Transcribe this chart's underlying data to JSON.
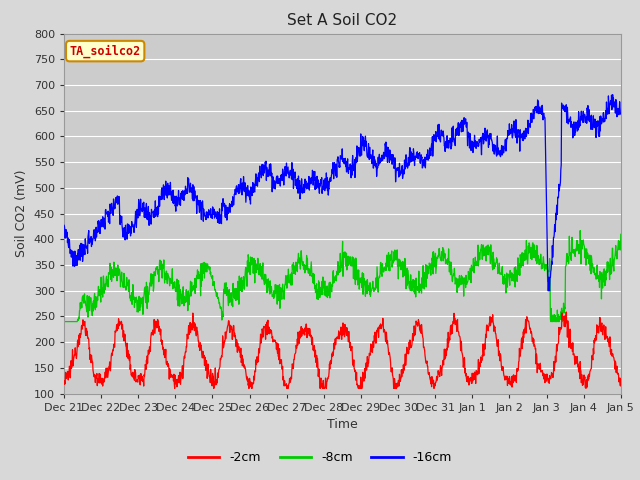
{
  "title": "Set A Soil CO2",
  "ylabel": "Soil CO2 (mV)",
  "xlabel": "Time",
  "legend_label": "TA_soilco2",
  "ylim": [
    100,
    800
  ],
  "series_labels": [
    "-2cm",
    "-8cm",
    "-16cm"
  ],
  "series_colors": [
    "#ff0000",
    "#00cc00",
    "#0000ff"
  ],
  "fig_bg_color": "#d8d8d8",
  "plot_bg_color": "#cccccc",
  "grid_color": "#bbbbbb",
  "tick_labels": [
    "Dec 21",
    "Dec 22",
    "Dec 23",
    "Dec 24",
    "Dec 25",
    "Dec 26",
    "Dec 27",
    "Dec 28",
    "Dec 29",
    "Dec 30",
    "Dec 31",
    "Jan 1",
    "Jan 2",
    "Jan 3",
    "Jan 4",
    "Jan 5"
  ],
  "n_points": 1440
}
